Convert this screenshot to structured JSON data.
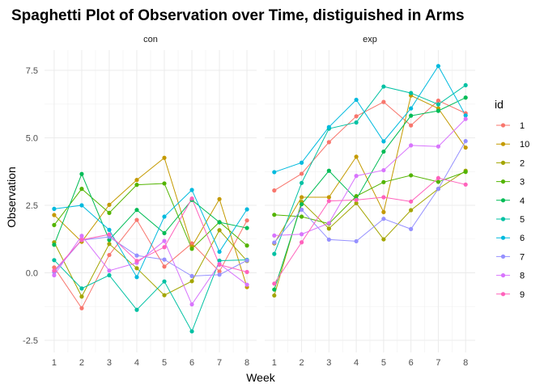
{
  "chart_data": {
    "type": "line",
    "title": "Spaghetti Plot of Observation over Time, distiguished in Arms",
    "xlabel": "Week",
    "ylabel": "Observation",
    "x": [
      1,
      2,
      3,
      4,
      5,
      6,
      7,
      8
    ],
    "xlim": [
      0.65,
      8.35
    ],
    "ylim": [
      -2.95,
      8.25
    ],
    "yticks": [
      -2.5,
      0.0,
      2.5,
      5.0,
      7.5
    ],
    "ytick_labels": [
      "-2.5",
      "0.0",
      "2.5",
      "5.0",
      "7.5"
    ],
    "xtick_labels": [
      "1",
      "2",
      "3",
      "4",
      "5",
      "6",
      "7",
      "8"
    ],
    "grid": true,
    "legend": {
      "title": "id",
      "position": "right"
    },
    "series_ids": [
      "1",
      "10",
      "2",
      "3",
      "4",
      "5",
      "6",
      "7",
      "8",
      "9"
    ],
    "colors": [
      "#F8766D",
      "#C49A00",
      "#A3A500",
      "#53B400",
      "#00BC56",
      "#00C1A3",
      "#00BADE",
      "#9590FF",
      "#D874FD",
      "#FF62BC"
    ],
    "panels": [
      {
        "name": "con",
        "series": [
          {
            "id": "1",
            "values": [
              0.2,
              -1.31,
              0.66,
              1.96,
              0.23,
              1.09,
              0.05,
              1.94
            ]
          },
          {
            "id": "10",
            "values": [
              2.14,
              1.15,
              2.52,
              3.44,
              4.26,
              0.97,
              2.73,
              -0.53
            ]
          },
          {
            "id": "2",
            "values": [
              1.13,
              -0.88,
              1.07,
              0.17,
              -0.83,
              -0.31,
              1.58,
              0.44
            ]
          },
          {
            "id": "3",
            "values": [
              1.77,
              3.11,
              2.22,
              3.26,
              3.31,
              0.89,
              1.88,
              1.01
            ]
          },
          {
            "id": "4",
            "values": [
              1.04,
              3.66,
              1.22,
              2.33,
              1.47,
              2.7,
              1.87,
              1.66
            ]
          },
          {
            "id": "5",
            "values": [
              0.47,
              -0.58,
              -0.09,
              -1.37,
              -0.32,
              -2.17,
              0.45,
              0.48
            ]
          },
          {
            "id": "6",
            "values": [
              2.37,
              2.5,
              1.59,
              -0.16,
              2.08,
              3.07,
              0.78,
              2.35
            ]
          },
          {
            "id": "7",
            "values": [
              0.03,
              1.21,
              1.33,
              0.64,
              0.49,
              -0.12,
              -0.07,
              0.46
            ]
          },
          {
            "id": "8",
            "values": [
              -0.09,
              1.37,
              0.08,
              0.37,
              1.18,
              -1.17,
              0.33,
              -0.44
            ]
          },
          {
            "id": "9",
            "values": [
              0.08,
              1.22,
              1.42,
              0.44,
              0.95,
              2.75,
              0.3,
              0.03
            ]
          }
        ]
      },
      {
        "name": "exp",
        "series": [
          {
            "id": "1",
            "values": [
              3.05,
              3.67,
              4.84,
              5.8,
              6.33,
              5.46,
              6.38,
              5.91
            ]
          },
          {
            "id": "10",
            "values": [
              1.09,
              2.8,
              2.8,
              4.3,
              2.25,
              6.57,
              6.09,
              4.64
            ]
          },
          {
            "id": "2",
            "values": [
              -0.84,
              2.63,
              1.64,
              2.58,
              1.24,
              2.32,
              3.11,
              3.78
            ]
          },
          {
            "id": "3",
            "values": [
              2.15,
              2.08,
              1.82,
              2.84,
              3.36,
              3.61,
              3.37,
              3.74
            ]
          },
          {
            "id": "4",
            "values": [
              -0.62,
              2.54,
              3.78,
              2.73,
              4.49,
              5.82,
              6.0,
              6.49
            ]
          },
          {
            "id": "5",
            "values": [
              0.7,
              3.33,
              5.34,
              5.57,
              6.9,
              6.66,
              6.24,
              6.95
            ]
          },
          {
            "id": "6",
            "values": [
              3.73,
              4.08,
              5.4,
              6.41,
              4.87,
              6.09,
              7.66,
              5.83
            ]
          },
          {
            "id": "7",
            "values": [
              1.12,
              2.34,
              1.23,
              1.17,
              2.0,
              1.62,
              3.11,
              4.88
            ]
          },
          {
            "id": "8",
            "values": [
              1.38,
              1.43,
              1.84,
              3.59,
              3.8,
              4.72,
              4.68,
              5.7
            ]
          },
          {
            "id": "9",
            "values": [
              -0.4,
              1.13,
              2.66,
              2.7,
              2.8,
              2.64,
              3.51,
              3.27
            ]
          }
        ]
      }
    ]
  }
}
